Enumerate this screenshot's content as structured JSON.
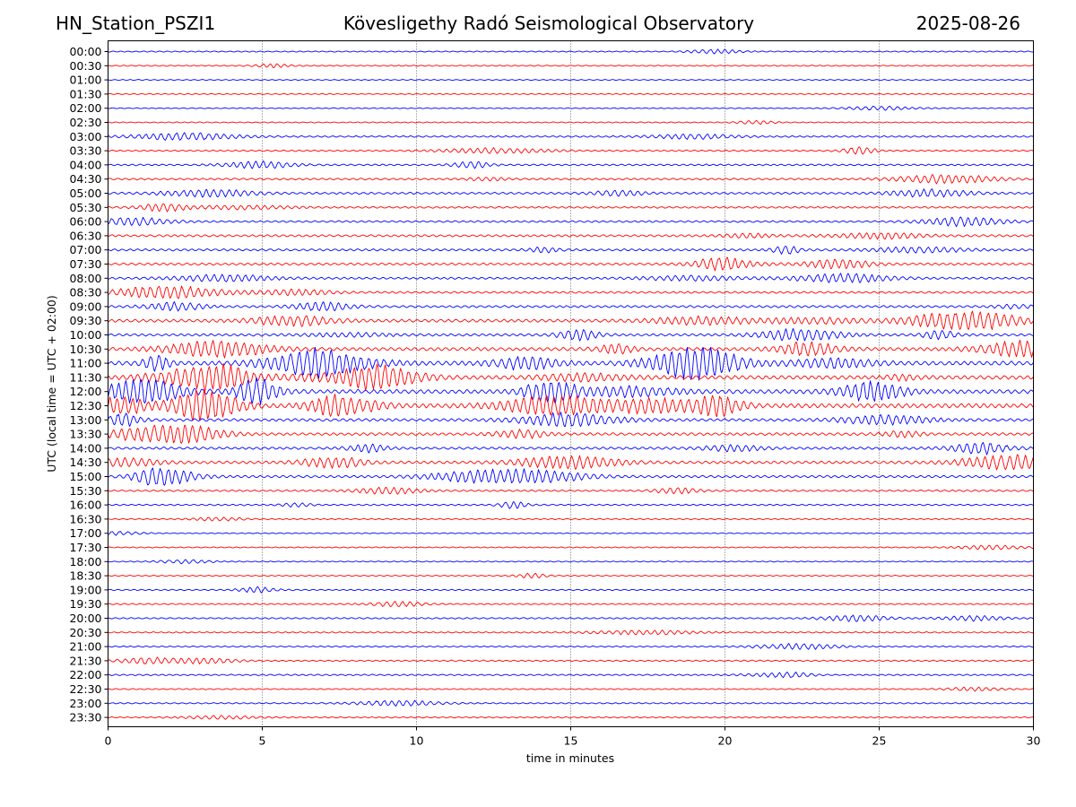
{
  "header": {
    "station": "HN_Station_PSZI1",
    "title": "Kövesligethy Radó Seismological Observatory",
    "date": "2025-08-26"
  },
  "chart_data": {
    "type": "line",
    "title": "Kövesligethy Radó Seismological Observatory",
    "xlabel": "time in minutes",
    "ylabel": "UTC (local time = UTC + 02:00)",
    "xlim": [
      0,
      30
    ],
    "xticks": [
      0,
      5,
      10,
      15,
      20,
      25,
      30
    ],
    "grid": "vertical dotted lines at 5-minute ticks",
    "colors": {
      "even_row": "#0000ff",
      "odd_row": "#ff0000"
    },
    "rows": [
      {
        "label": "00:00",
        "activity": 0.15
      },
      {
        "label": "00:30",
        "activity": 0.15
      },
      {
        "label": "01:00",
        "activity": 0.08
      },
      {
        "label": "01:30",
        "activity": 0.08
      },
      {
        "label": "02:00",
        "activity": 0.1
      },
      {
        "label": "02:30",
        "activity": 0.12
      },
      {
        "label": "03:00",
        "activity": 0.3
      },
      {
        "label": "03:30",
        "activity": 0.3
      },
      {
        "label": "04:00",
        "activity": 0.35
      },
      {
        "label": "04:30",
        "activity": 0.4
      },
      {
        "label": "05:00",
        "activity": 0.45
      },
      {
        "label": "05:30",
        "activity": 0.35
      },
      {
        "label": "06:00",
        "activity": 0.4
      },
      {
        "label": "06:30",
        "activity": 0.5
      },
      {
        "label": "07:00",
        "activity": 0.5
      },
      {
        "label": "07:30",
        "activity": 0.5
      },
      {
        "label": "08:00",
        "activity": 0.45
      },
      {
        "label": "08:30",
        "activity": 0.45
      },
      {
        "label": "09:00",
        "activity": 0.55
      },
      {
        "label": "09:30",
        "activity": 0.8
      },
      {
        "label": "10:00",
        "activity": 0.6
      },
      {
        "label": "10:30",
        "activity": 0.9
      },
      {
        "label": "11:00",
        "activity": 1.2
      },
      {
        "label": "11:30",
        "activity": 1.1
      },
      {
        "label": "12:00",
        "activity": 1.2
      },
      {
        "label": "12:30",
        "activity": 1.3
      },
      {
        "label": "13:00",
        "activity": 0.7
      },
      {
        "label": "13:30",
        "activity": 0.7
      },
      {
        "label": "14:00",
        "activity": 0.6
      },
      {
        "label": "14:30",
        "activity": 0.7
      },
      {
        "label": "15:00",
        "activity": 0.6
      },
      {
        "label": "15:30",
        "activity": 0.35
      },
      {
        "label": "16:00",
        "activity": 0.3
      },
      {
        "label": "16:30",
        "activity": 0.2
      },
      {
        "label": "17:00",
        "activity": 0.12
      },
      {
        "label": "17:30",
        "activity": 0.12
      },
      {
        "label": "18:00",
        "activity": 0.12
      },
      {
        "label": "18:30",
        "activity": 0.15
      },
      {
        "label": "19:00",
        "activity": 0.2
      },
      {
        "label": "19:30",
        "activity": 0.2
      },
      {
        "label": "20:00",
        "activity": 0.25
      },
      {
        "label": "20:30",
        "activity": 0.2
      },
      {
        "label": "21:00",
        "activity": 0.2
      },
      {
        "label": "21:30",
        "activity": 0.25
      },
      {
        "label": "22:00",
        "activity": 0.25
      },
      {
        "label": "22:30",
        "activity": 0.15
      },
      {
        "label": "23:00",
        "activity": 0.2
      },
      {
        "label": "23:30",
        "activity": 0.2
      }
    ]
  }
}
